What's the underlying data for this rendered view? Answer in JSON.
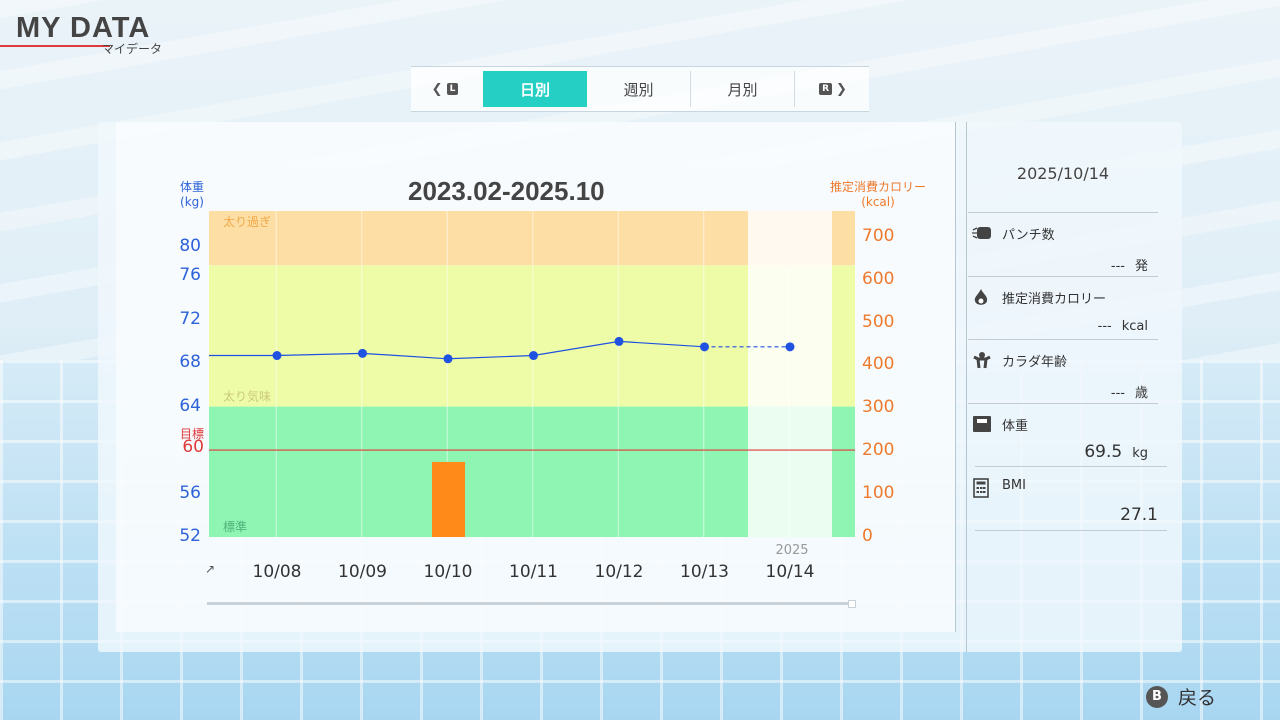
{
  "header": {
    "title": "MY DATA",
    "subtitle": "マイデータ"
  },
  "tabs": {
    "prev_button": "L",
    "next_button": "R",
    "items": [
      {
        "label": "日別",
        "active": true
      },
      {
        "label": "週別",
        "active": false
      },
      {
        "label": "月別",
        "active": false
      }
    ]
  },
  "chart_data": {
    "type": "line",
    "title": "2023.02-2025.10",
    "ylabel_left": "体重\n(kg)",
    "ylabel_right": "推定消費カロリー\n(kcal)",
    "ylim_left": [
      52,
      82
    ],
    "yticks_left": [
      "80",
      "76",
      "72",
      "68",
      "64",
      "60",
      "56",
      "52"
    ],
    "ylim_right": [
      0,
      760
    ],
    "yticks_right": [
      "700",
      "600",
      "500",
      "400",
      "300",
      "200",
      "100",
      "0"
    ],
    "goal_label": "目標",
    "goal_value": 60,
    "bands": [
      {
        "label": "太り過ぎ",
        "from": 77,
        "to": 82,
        "color": "#fddfa6"
      },
      {
        "label": "太り気味",
        "from": 64,
        "to": 77,
        "color": "#eefca8"
      },
      {
        "label": "標準",
        "from": 52,
        "to": 64,
        "color": "#8ff5b3"
      }
    ],
    "categories": [
      "10/08",
      "10/09",
      "10/10",
      "10/11",
      "10/12",
      "10/13",
      "10/14"
    ],
    "x_year_label": "2025",
    "x_first_marker": "↗",
    "series": [
      {
        "axis": "left",
        "type": "line",
        "color": "#1f52e0",
        "values": [
          68.7,
          68.9,
          68.4,
          68.7,
          70.0,
          69.5,
          69.5
        ],
        "dashed_from_index": 5
      },
      {
        "axis": "right",
        "type": "bar",
        "color": "#ff8a1a",
        "values": [
          null,
          null,
          175,
          null,
          null,
          null,
          null
        ]
      }
    ],
    "highlight_category": "10/14"
  },
  "side": {
    "date": "2025/10/14",
    "rows": [
      {
        "icon": "punch-icon",
        "label": "パンチ数",
        "value": "---",
        "unit": "発"
      },
      {
        "icon": "calorie-flame-icon",
        "label": "推定消費カロリー",
        "value": "---",
        "unit": "kcal"
      },
      {
        "icon": "body-age-icon",
        "label": "カラダ年齢",
        "value": "---",
        "unit": "歳"
      },
      {
        "icon": "scale-icon",
        "label": "体重",
        "value": "69.5",
        "unit": "kg"
      },
      {
        "icon": "calculator-icon",
        "label": "BMI",
        "value": "27.1",
        "unit": ""
      }
    ]
  },
  "footer": {
    "back_button": "B",
    "back_label": "戻る"
  },
  "colors": {
    "accent": "#26cfc4",
    "weight": "#2d62d8",
    "calorie": "#ee7a2e",
    "goal": "#e03a3a"
  }
}
